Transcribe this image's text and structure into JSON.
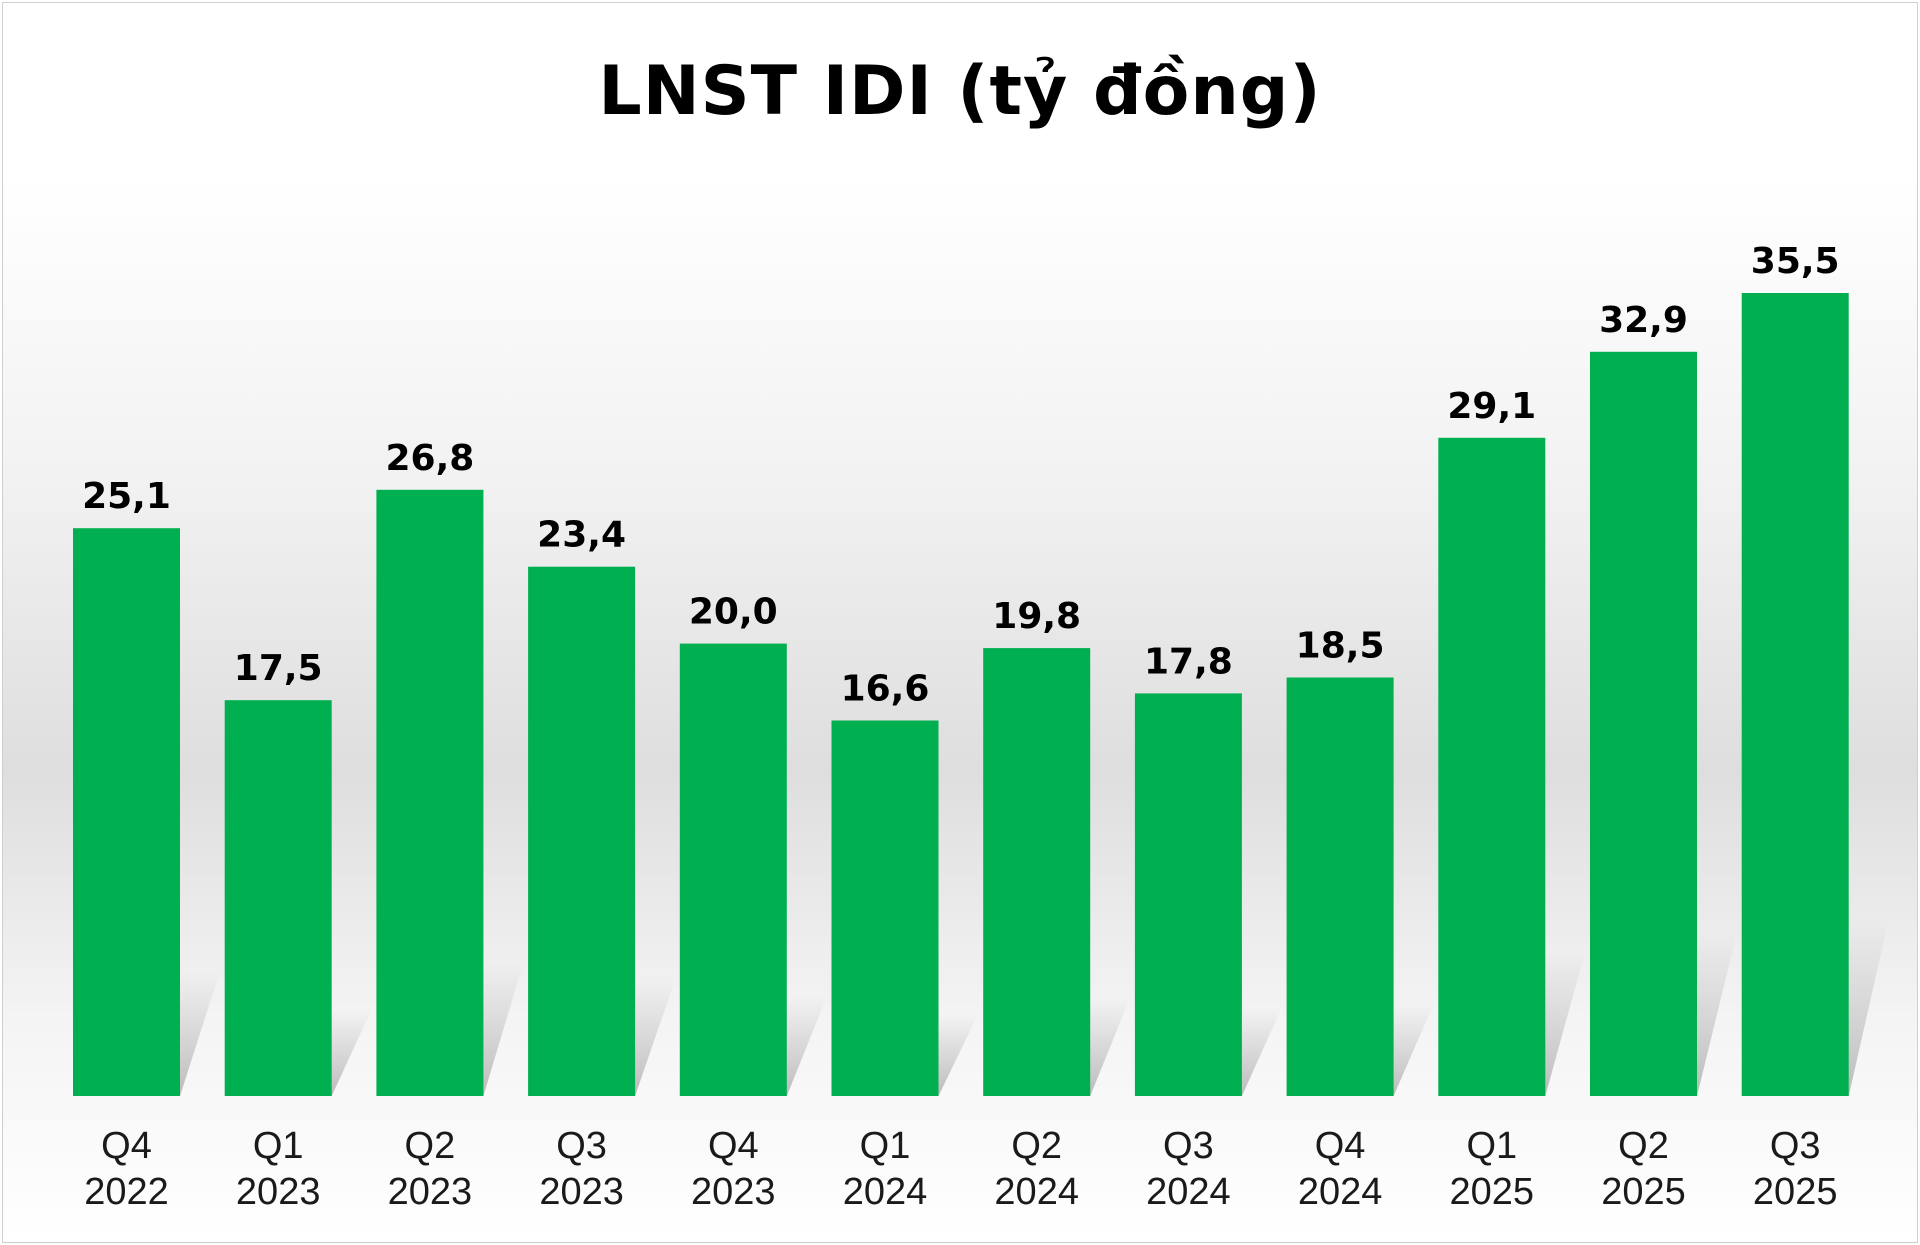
{
  "chart_data": {
    "type": "bar",
    "title": "LNST IDI (tỷ đồng)",
    "categories": [
      [
        "Q4",
        "2022"
      ],
      [
        "Q1",
        "2023"
      ],
      [
        "Q2",
        "2023"
      ],
      [
        "Q3",
        "2023"
      ],
      [
        "Q4",
        "2023"
      ],
      [
        "Q1",
        "2024"
      ],
      [
        "Q2",
        "2024"
      ],
      [
        "Q3",
        "2024"
      ],
      [
        "Q4",
        "2024"
      ],
      [
        "Q1",
        "2025"
      ],
      [
        "Q2",
        "2025"
      ],
      [
        "Q3",
        "2025"
      ]
    ],
    "values": [
      25.1,
      17.5,
      26.8,
      23.4,
      20.0,
      16.6,
      19.8,
      17.8,
      18.5,
      29.1,
      32.9,
      35.5
    ],
    "value_labels": [
      "25,1",
      "17,5",
      "26,8",
      "23,4",
      "20,0",
      "16,6",
      "19,8",
      "17,8",
      "18,5",
      "29,1",
      "32,9",
      "35,5"
    ],
    "xlabel": "",
    "ylabel": "",
    "ylim": [
      0,
      35.5
    ],
    "grid": false,
    "legend": "none",
    "bar_color": "#00B050"
  }
}
